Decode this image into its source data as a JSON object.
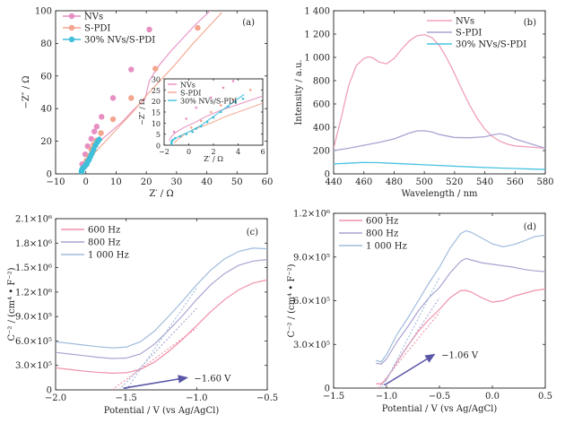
{
  "chart_data": [
    {
      "id": "a",
      "type": "scatter",
      "panel_label": "(a)",
      "xlabel": "Z′ / Ω",
      "ylabel": "−Z″ / Ω",
      "xlim": [
        -10,
        60
      ],
      "ylim": [
        0,
        100
      ],
      "xticks": [
        -10,
        0,
        10,
        20,
        30,
        40,
        50,
        60
      ],
      "yticks": [
        0,
        20,
        40,
        60,
        80,
        100
      ],
      "series": [
        {
          "name": "NVs",
          "color": "#e78fc2",
          "x": [
            -1.6,
            -1.4,
            -1.0,
            -0.4,
            0.4,
            1.4,
            2.7,
            4.3,
            6.4,
            9.0,
            12.1,
            15.6,
            19.6,
            21.0,
            24.0,
            28.0,
            32.0,
            36.0,
            40.0,
            44.5
          ],
          "y": [
            2,
            4,
            6,
            8,
            10,
            13,
            16,
            19,
            23,
            27,
            32,
            39,
            46,
            57,
            66,
            75,
            83,
            91,
            98,
            106
          ],
          "markers": [
            [
              -1.2,
              6
            ],
            [
              -0.2,
              12
            ],
            [
              0.6,
              17
            ],
            [
              1.8,
              21.5
            ],
            [
              2.8,
              26
            ],
            [
              3.6,
              29
            ],
            [
              5.2,
              35
            ],
            [
              9.0,
              46.5
            ],
            [
              15.0,
              64
            ],
            [
              21.0,
              88.5
            ]
          ]
        },
        {
          "name": "S-PDI",
          "color": "#f3a58e",
          "x": [
            -1.2,
            -1.0,
            -0.6,
            0.0,
            0.8,
            1.8,
            3.0,
            4.5,
            6.5,
            9.0,
            12.0,
            15.6,
            20.0,
            25.0,
            30.0,
            35.0,
            40.0,
            45.0
          ],
          "y": [
            1,
            2,
            4,
            6,
            8,
            10,
            13,
            16,
            20,
            25,
            31,
            38,
            48,
            58,
            68,
            79,
            89,
            99
          ],
          "markers": [
            [
              -0.6,
              4
            ],
            [
              0.2,
              8
            ],
            [
              1.0,
              11
            ],
            [
              1.8,
              15
            ],
            [
              2.6,
              18
            ],
            [
              3.6,
              20.5
            ],
            [
              5.0,
              25
            ],
            [
              9.0,
              33.5
            ],
            [
              15.0,
              46.5
            ],
            [
              23.0,
              64.5
            ],
            [
              37.0,
              89.5
            ]
          ]
        },
        {
          "name": "30% NVs/S-PDI",
          "color": "#3fbfd9",
          "x": [
            -1.4,
            -1.4,
            -1.3,
            -1.1,
            -0.8,
            -0.4,
            0.0,
            0.5,
            1.0,
            1.5,
            2.0,
            2.5,
            3.0,
            3.5,
            4.0,
            4.5
          ],
          "y": [
            0,
            1,
            2,
            3,
            4,
            5,
            6,
            7.5,
            9,
            11,
            13,
            15,
            17,
            19,
            21,
            23
          ],
          "markers": [
            [
              -1.4,
              0.8
            ],
            [
              -1.4,
              1.6
            ],
            [
              -1.3,
              2.4
            ],
            [
              -1.1,
              3.2
            ],
            [
              -0.7,
              4
            ],
            [
              -0.2,
              5
            ],
            [
              0.3,
              6
            ],
            [
              0.6,
              7.5
            ],
            [
              1.0,
              8.5
            ],
            [
              1.5,
              10.5
            ],
            [
              2.0,
              12.5
            ],
            [
              2.6,
              15
            ],
            [
              3.2,
              17.5
            ],
            [
              3.8,
              19.5
            ],
            [
              4.4,
              21
            ]
          ]
        }
      ],
      "legend": "top-left",
      "inset": {
        "xlabel": "Z′ / Ω",
        "ylabel": "−Z″ / Ω",
        "xlim": [
          -2,
          6
        ],
        "ylim": [
          0,
          30
        ],
        "xticks": [
          -2,
          0,
          2,
          4,
          6
        ],
        "yticks": [
          0,
          5,
          10,
          15,
          20,
          25,
          30
        ],
        "legend": "top-left"
      }
    },
    {
      "id": "b",
      "type": "line",
      "panel_label": "(b)",
      "xlabel": "Wavelength / nm",
      "ylabel": "Intensity / a.u.",
      "xlim": [
        440,
        580
      ],
      "ylim": [
        0,
        1400
      ],
      "xticks": [
        440,
        460,
        480,
        500,
        520,
        540,
        560,
        580
      ],
      "yticks": [
        0,
        200,
        400,
        600,
        800,
        1000,
        1200,
        1400
      ],
      "ytick_labels": [
        "0",
        "200",
        "400",
        "600",
        "800",
        "1 000",
        "1 200",
        "1 400"
      ],
      "series": [
        {
          "name": "NVs",
          "color": "#f0a0b8",
          "x": [
            440,
            445,
            450,
            455,
            460,
            463,
            466,
            470,
            475,
            480,
            485,
            490,
            495,
            500,
            505,
            510,
            515,
            520,
            525,
            530,
            535,
            540,
            545,
            550,
            555,
            560,
            565,
            570,
            575,
            580
          ],
          "y": [
            220,
            480,
            760,
            930,
            990,
            1005,
            995,
            960,
            945,
            990,
            1070,
            1140,
            1185,
            1195,
            1170,
            1100,
            990,
            860,
            720,
            590,
            475,
            385,
            320,
            280,
            255,
            240,
            235,
            230,
            225,
            220
          ]
        },
        {
          "name": "S-PDI",
          "color": "#a8a4d2",
          "x": [
            440,
            450,
            460,
            470,
            480,
            485,
            490,
            495,
            500,
            505,
            510,
            520,
            530,
            540,
            545,
            550,
            555,
            560,
            570,
            580
          ],
          "y": [
            200,
            220,
            245,
            270,
            300,
            325,
            350,
            368,
            370,
            360,
            338,
            312,
            310,
            318,
            335,
            345,
            330,
            300,
            260,
            220
          ]
        },
        {
          "name": "30% NVs/S-PDI",
          "color": "#48c2e0",
          "x": [
            440,
            450,
            460,
            470,
            480,
            490,
            500,
            510,
            520,
            530,
            540,
            550,
            560,
            570,
            580
          ],
          "y": [
            85,
            92,
            98,
            96,
            90,
            84,
            78,
            72,
            66,
            60,
            55,
            50,
            46,
            42,
            38
          ]
        }
      ],
      "legend": "top-right"
    },
    {
      "id": "c",
      "type": "line",
      "panel_label": "(c)",
      "xlabel": "Potential / V (vs Ag/AgCl)",
      "ylabel": "C⁻² / (cm⁴ • F⁻²)",
      "xlim": [
        -2.0,
        -0.5
      ],
      "ylim": [
        0,
        2100000
      ],
      "xticks": [
        -2.0,
        -1.5,
        -1.0,
        -0.5
      ],
      "xtick_labels": [
        "−2.0",
        "−1.5",
        "−1.0",
        "−0.5"
      ],
      "yticks": [
        0,
        300000,
        600000,
        900000,
        1200000,
        1500000,
        1800000,
        2100000
      ],
      "ytick_labels": [
        "0",
        "3.0×10⁵",
        "6.0×10⁵",
        "9.0×10⁵",
        "1.2×10⁶",
        "1.5×10⁶",
        "1.8×10⁶",
        "2.1×10⁶"
      ],
      "series": [
        {
          "name": "600 Hz",
          "color": "#ef90a8",
          "x": [
            -2.0,
            -1.9,
            -1.8,
            -1.7,
            -1.6,
            -1.5,
            -1.4,
            -1.3,
            -1.2,
            -1.1,
            -1.0,
            -0.9,
            -0.8,
            -0.7,
            -0.6,
            -0.5
          ],
          "y": [
            270000,
            250000,
            230000,
            215000,
            205000,
            210000,
            250000,
            340000,
            470000,
            620000,
            790000,
            960000,
            1110000,
            1230000,
            1310000,
            1350000
          ]
        },
        {
          "name": "800 Hz",
          "color": "#a8a4d2",
          "x": [
            -2.0,
            -1.9,
            -1.8,
            -1.7,
            -1.6,
            -1.5,
            -1.4,
            -1.3,
            -1.2,
            -1.1,
            -1.0,
            -0.9,
            -0.8,
            -0.7,
            -0.6,
            -0.5
          ],
          "y": [
            460000,
            440000,
            420000,
            400000,
            385000,
            390000,
            440000,
            560000,
            730000,
            910000,
            1110000,
            1290000,
            1430000,
            1530000,
            1580000,
            1600000
          ]
        },
        {
          "name": "1 000 Hz",
          "color": "#a0bcdc",
          "x": [
            -2.0,
            -1.9,
            -1.8,
            -1.7,
            -1.6,
            -1.5,
            -1.4,
            -1.3,
            -1.2,
            -1.1,
            -1.0,
            -0.9,
            -0.8,
            -0.7,
            -0.6,
            -0.5
          ],
          "y": [
            590000,
            570000,
            550000,
            530000,
            515000,
            525000,
            590000,
            720000,
            900000,
            1090000,
            1290000,
            1470000,
            1610000,
            1700000,
            1740000,
            1730000
          ]
        }
      ],
      "fit_lines": [
        {
          "color": "#ef90a8",
          "x": [
            -1.6,
            -1.0
          ],
          "y": [
            0,
            760000
          ]
        },
        {
          "color": "#a8a4d2",
          "x": [
            -1.55,
            -1.0
          ],
          "y": [
            0,
            1000000
          ]
        },
        {
          "color": "#a0bcdc",
          "x": [
            -1.5,
            -1.0
          ],
          "y": [
            0,
            1250000
          ]
        }
      ],
      "annotation": {
        "text": "−1.60 V",
        "arrow_from": [
          -1.52,
          20000
        ],
        "arrow_to": [
          -1.07,
          150000
        ]
      },
      "legend": "top-left"
    },
    {
      "id": "d",
      "type": "line",
      "panel_label": "(d)",
      "xlabel": "Potential / V (vs Ag/AgCl)",
      "ylabel": "C⁻² / (cm⁴ • F⁻²)",
      "xlim": [
        -1.5,
        0.5
      ],
      "ylim": [
        0,
        1200000
      ],
      "xticks": [
        -1.5,
        -1.0,
        -0.5,
        0.0,
        0.5
      ],
      "xtick_labels": [
        "−1.5",
        "−1.0",
        "−0.5",
        "0.0",
        "0.5"
      ],
      "yticks": [
        0,
        300000,
        600000,
        900000,
        1200000
      ],
      "ytick_labels": [
        "0",
        "3.0×10⁵",
        "6.0×10⁵",
        "9.0×10⁵",
        "1.2×10⁶"
      ],
      "series": [
        {
          "name": "600 Hz",
          "color": "#ef90a8",
          "x": [
            -1.1,
            -1.05,
            -1.0,
            -0.95,
            -0.9,
            -0.8,
            -0.7,
            -0.6,
            -0.5,
            -0.4,
            -0.3,
            -0.25,
            -0.2,
            -0.1,
            0.0,
            0.1,
            0.2,
            0.3,
            0.4,
            0.5
          ],
          "y": [
            30000,
            30000,
            60000,
            120000,
            180000,
            290000,
            390000,
            470000,
            540000,
            620000,
            670000,
            670000,
            660000,
            620000,
            590000,
            600000,
            630000,
            650000,
            670000,
            680000
          ]
        },
        {
          "name": "800 Hz",
          "color": "#a8a4d2",
          "x": [
            -1.1,
            -1.05,
            -1.0,
            -0.95,
            -0.9,
            -0.8,
            -0.7,
            -0.6,
            -0.5,
            -0.4,
            -0.3,
            -0.25,
            -0.2,
            -0.1,
            0.0,
            0.1,
            0.2,
            0.3,
            0.4,
            0.5
          ],
          "y": [
            170000,
            165000,
            200000,
            260000,
            320000,
            420000,
            530000,
            620000,
            690000,
            790000,
            870000,
            890000,
            880000,
            860000,
            850000,
            840000,
            830000,
            815000,
            805000,
            800000
          ]
        },
        {
          "name": "1 000 Hz",
          "color": "#a0bcdc",
          "x": [
            -1.1,
            -1.05,
            -1.0,
            -0.95,
            -0.9,
            -0.8,
            -0.7,
            -0.6,
            -0.5,
            -0.4,
            -0.3,
            -0.25,
            -0.2,
            -0.1,
            0.0,
            0.1,
            0.2,
            0.3,
            0.4,
            0.5
          ],
          "y": [
            190000,
            180000,
            230000,
            300000,
            370000,
            480000,
            600000,
            720000,
            830000,
            960000,
            1060000,
            1080000,
            1070000,
            1030000,
            990000,
            970000,
            985000,
            1010000,
            1040000,
            1050000
          ]
        }
      ],
      "fit_lines": [
        {
          "color": "#ef90a8",
          "x": [
            -1.08,
            -0.5
          ],
          "y": [
            0,
            520000
          ]
        },
        {
          "color": "#a8a4d2",
          "x": [
            -1.06,
            -0.5
          ],
          "y": [
            0,
            620000
          ]
        },
        {
          "color": "#a0bcdc",
          "x": [
            -1.04,
            -0.5
          ],
          "y": [
            0,
            760000
          ]
        }
      ],
      "annotation": {
        "text": "−1.06 V",
        "arrow_from": [
          -1.02,
          20000
        ],
        "arrow_to": [
          -0.55,
          230000
        ]
      },
      "legend": "top-left"
    }
  ]
}
